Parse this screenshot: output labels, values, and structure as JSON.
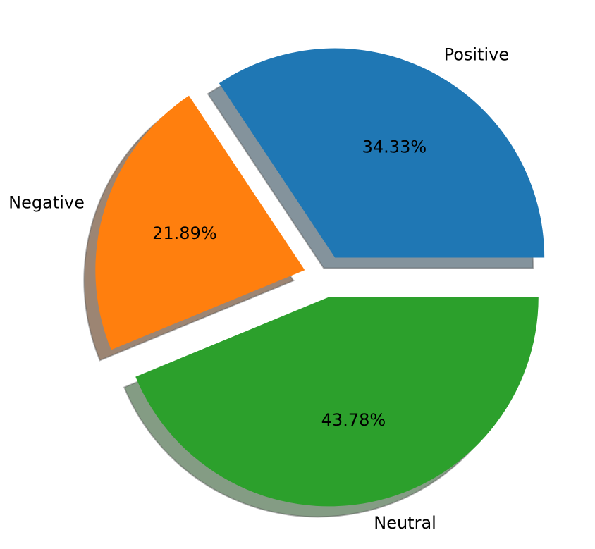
{
  "chart_data": {
    "type": "pie",
    "title": "",
    "slices": [
      {
        "label": "Positive",
        "value": 34.33,
        "pct_label": "34.33%",
        "color": "#1f77b4",
        "shadow_color": "#84939c",
        "exploded": true
      },
      {
        "label": "Negative",
        "value": 21.89,
        "pct_label": "21.89%",
        "color": "#ff7f0e",
        "shadow_color": "#9c8573",
        "exploded": true
      },
      {
        "label": "Neutral",
        "value": 43.78,
        "pct_label": "43.78%",
        "color": "#2ca02c",
        "shadow_color": "#849c84",
        "exploded": true
      }
    ],
    "start_angle": 0,
    "direction": "counterclockwise",
    "shadow": true,
    "legend": "none"
  }
}
